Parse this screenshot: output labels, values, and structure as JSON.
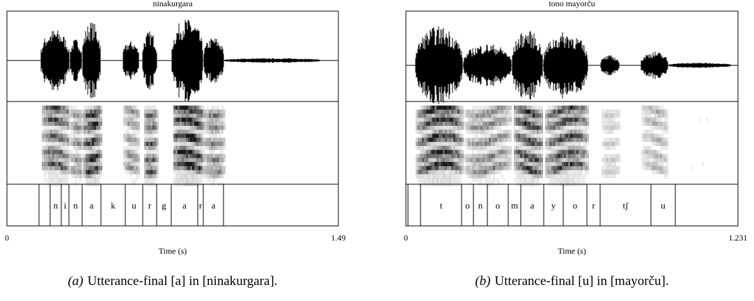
{
  "figures": [
    {
      "title": "ninakurgara",
      "segments": [
        "n",
        "i",
        "n",
        "a",
        "k",
        "u",
        "r",
        "g",
        "a",
        "r",
        "a"
      ],
      "x_start": 0,
      "x_end": 1.49,
      "x_label": "Time (s)",
      "caption_label": "(a)",
      "caption": "Utterance-final [a] in [ninakurgara]."
    },
    {
      "title": "tono mayorču",
      "segments": [
        "t",
        "o",
        "n",
        "o",
        "m",
        "a",
        "y",
        "o",
        "r",
        "tʃ",
        "u"
      ],
      "x_start": 0,
      "x_end": 1.231,
      "x_label": "Time (s)",
      "caption_label": "(b)",
      "caption": "Utterance-final [u] in [mayorču]."
    }
  ]
}
